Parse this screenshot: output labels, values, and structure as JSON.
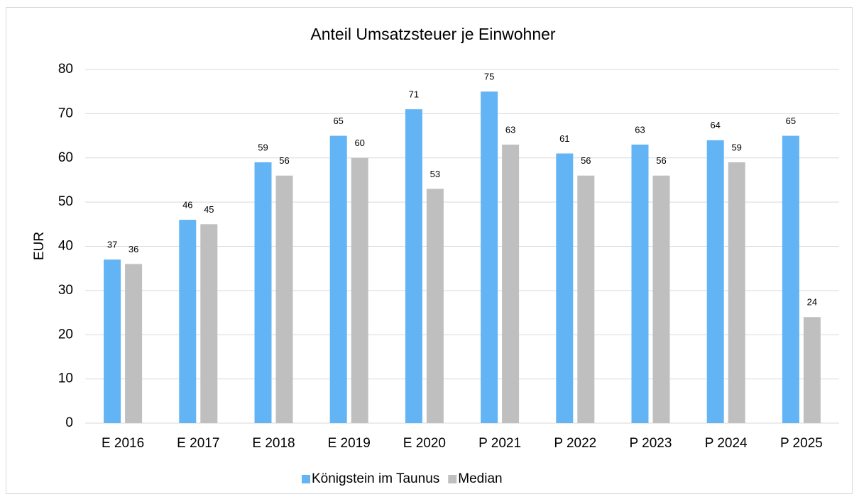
{
  "chart_data": {
    "type": "bar",
    "title": "Anteil Umsatzsteuer je Einwohner",
    "y_label": "EUR",
    "categories": [
      "E 2016",
      "E 2017",
      "E 2018",
      "E 2019",
      "E 2020",
      "P 2021",
      "P 2022",
      "P 2023",
      "P 2024",
      "P 2025"
    ],
    "series": [
      {
        "name": "Königstein im Taunus",
        "color": "#63b4f4",
        "values": [
          37,
          46,
          59,
          65,
          71,
          75,
          61,
          63,
          64,
          65
        ]
      },
      {
        "name": "Median",
        "color": "#bfbfbf",
        "values": [
          36,
          45,
          56,
          60,
          53,
          63,
          56,
          56,
          59,
          24
        ]
      }
    ],
    "ylim": [
      0,
      80
    ],
    "yticks": [
      0,
      10,
      20,
      30,
      40,
      50,
      60,
      70,
      80
    ],
    "grid": true,
    "legend": "bottom"
  }
}
